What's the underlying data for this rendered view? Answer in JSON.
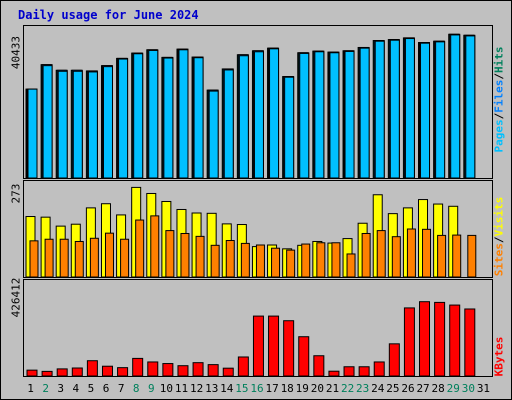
{
  "title": "Daily usage for June 2024",
  "legend": {
    "top": [
      "Pages",
      "/",
      "Files",
      "/",
      "Hits"
    ],
    "middle": [
      "Sites",
      "/",
      "Visits"
    ],
    "bottom": [
      "KBytes"
    ]
  },
  "colors": {
    "hits": "#00805c",
    "files": "#0080ff",
    "pages": "#00c0ff",
    "visits": "#ffff00",
    "sites": "#ff8000",
    "kbytes": "#ff0000",
    "title": "#0000cc",
    "weekend": "#00805c"
  },
  "y_ticks": {
    "hits": "40433",
    "visits": "273",
    "kbytes": "426412"
  },
  "chart_data": [
    {
      "type": "bar",
      "title": "Daily usage for June 2024",
      "categories": [
        "1",
        "2",
        "3",
        "4",
        "5",
        "6",
        "7",
        "8",
        "9",
        "10",
        "11",
        "12",
        "13",
        "14",
        "15",
        "16",
        "17",
        "18",
        "19",
        "20",
        "21",
        "22",
        "23",
        "24",
        "25",
        "26",
        "27",
        "28",
        "29",
        "30",
        "31"
      ],
      "ylim": [
        0,
        46000
      ],
      "series": [
        {
          "name": "Hits",
          "values": [
            26900,
            34300,
            32600,
            32600,
            32400,
            34000,
            36200,
            37800,
            38800,
            36500,
            39000,
            36600,
            26600,
            33000,
            37300,
            38500,
            39300,
            30700,
            37900,
            38400,
            38100,
            38500,
            39500,
            41600,
            41900,
            42400,
            41000,
            41400,
            43500,
            43200,
            0
          ]
        },
        {
          "name": "Files",
          "values": [
            26900,
            34300,
            32600,
            32600,
            32400,
            34000,
            36200,
            37800,
            38800,
            36500,
            39000,
            36600,
            26600,
            33000,
            37300,
            38500,
            39300,
            30700,
            37900,
            38400,
            38100,
            38500,
            39500,
            41600,
            41900,
            42400,
            41000,
            41400,
            43500,
            43200,
            0
          ]
        },
        {
          "name": "Pages",
          "values": [
            26900,
            34000,
            32300,
            32300,
            32100,
            33700,
            36000,
            37600,
            38600,
            36300,
            38800,
            36400,
            26300,
            32700,
            37000,
            38200,
            39100,
            30500,
            37700,
            38200,
            37900,
            38300,
            39300,
            41400,
            41700,
            42200,
            40800,
            41200,
            43300,
            43000,
            0
          ]
        }
      ]
    },
    {
      "type": "bar",
      "categories": [
        "1",
        "2",
        "3",
        "4",
        "5",
        "6",
        "7",
        "8",
        "9",
        "10",
        "11",
        "12",
        "13",
        "14",
        "15",
        "16",
        "17",
        "18",
        "19",
        "20",
        "21",
        "22",
        "23",
        "24",
        "25",
        "26",
        "27",
        "28",
        "29",
        "30",
        "31"
      ],
      "ylim": [
        0,
        300
      ],
      "series": [
        {
          "name": "Visits",
          "values": [
            189,
            187,
            159,
            165,
            216,
            229,
            194,
            280,
            261,
            236,
            211,
            200,
            199,
            166,
            164,
            95,
            100,
            88,
            99,
            111,
            106,
            120,
            168,
            257,
            198,
            216,
            242,
            228,
            221,
            0,
            0
          ]
        },
        {
          "name": "Sites",
          "values": [
            113,
            118,
            118,
            111,
            121,
            137,
            118,
            178,
            191,
            145,
            136,
            127,
            99,
            114,
            105,
            100,
            90,
            84,
            103,
            107,
            107,
            72,
            136,
            145,
            126,
            150,
            149,
            130,
            131,
            130,
            0
          ]
        }
      ]
    },
    {
      "type": "bar",
      "categories": [
        "1",
        "2",
        "3",
        "4",
        "5",
        "6",
        "7",
        "8",
        "9",
        "10",
        "11",
        "12",
        "13",
        "14",
        "15",
        "16",
        "17",
        "18",
        "19",
        "20",
        "21",
        "22",
        "23",
        "24",
        "25",
        "26",
        "27",
        "28",
        "29",
        "30",
        "31"
      ],
      "ylim": [
        0,
        540000
      ],
      "series": [
        {
          "name": "KBytes",
          "values": [
            33000,
            26000,
            40000,
            45000,
            86000,
            55000,
            47000,
            99000,
            79000,
            70000,
            58000,
            75000,
            64000,
            44000,
            107000,
            337000,
            337000,
            311000,
            221000,
            114000,
            27000,
            52000,
            52000,
            79000,
            181000,
            383000,
            418000,
            414000,
            399000,
            377000,
            0
          ]
        }
      ]
    }
  ],
  "x_labels": [
    {
      "label": "1",
      "weekend": false
    },
    {
      "label": "2",
      "weekend": true
    },
    {
      "label": "3",
      "weekend": false
    },
    {
      "label": "4",
      "weekend": false
    },
    {
      "label": "5",
      "weekend": false
    },
    {
      "label": "6",
      "weekend": false
    },
    {
      "label": "7",
      "weekend": false
    },
    {
      "label": "8",
      "weekend": true
    },
    {
      "label": "9",
      "weekend": true
    },
    {
      "label": "10",
      "weekend": false
    },
    {
      "label": "11",
      "weekend": false
    },
    {
      "label": "12",
      "weekend": false
    },
    {
      "label": "13",
      "weekend": false
    },
    {
      "label": "14",
      "weekend": false
    },
    {
      "label": "15",
      "weekend": true
    },
    {
      "label": "16",
      "weekend": true
    },
    {
      "label": "17",
      "weekend": false
    },
    {
      "label": "18",
      "weekend": false
    },
    {
      "label": "19",
      "weekend": false
    },
    {
      "label": "20",
      "weekend": false
    },
    {
      "label": "21",
      "weekend": false
    },
    {
      "label": "22",
      "weekend": true
    },
    {
      "label": "23",
      "weekend": true
    },
    {
      "label": "24",
      "weekend": false
    },
    {
      "label": "25",
      "weekend": false
    },
    {
      "label": "26",
      "weekend": false
    },
    {
      "label": "27",
      "weekend": false
    },
    {
      "label": "28",
      "weekend": false
    },
    {
      "label": "29",
      "weekend": true
    },
    {
      "label": "30",
      "weekend": true
    },
    {
      "label": "31",
      "weekend": false
    }
  ]
}
